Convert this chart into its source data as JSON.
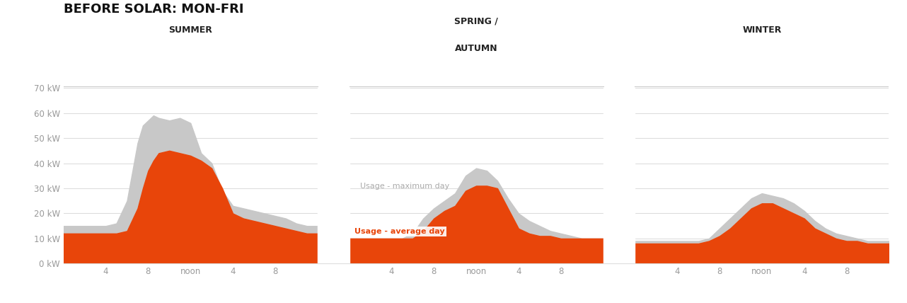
{
  "title": "BEFORE SOLAR: MON-FRI",
  "title_fontsize": 13,
  "background_color": "#ffffff",
  "avg_color": "#E8450A",
  "max_color": "#c8c8c8",
  "grid_color": "#dddddd",
  "avg_label": "Usage - average day",
  "max_label": "Usage - maximum day",
  "ylim": [
    0,
    70
  ],
  "yticks": [
    0,
    10,
    20,
    30,
    40,
    50,
    60,
    70
  ],
  "ytick_labels": [
    "0 kW",
    "10 kW",
    "20 kW",
    "30 kW",
    "40 kW",
    "50 kW",
    "60 kW",
    "70 kW"
  ],
  "summer_x": [
    0,
    1,
    2,
    3,
    4,
    5,
    6,
    7,
    7.5,
    8,
    8.5,
    9,
    10,
    11,
    12,
    13,
    14,
    15,
    16,
    17,
    18,
    19,
    20,
    21,
    22,
    23,
    24
  ],
  "summer_avg": [
    12,
    12,
    12,
    12,
    12,
    12,
    13,
    22,
    30,
    37,
    41,
    44,
    45,
    44,
    43,
    41,
    38,
    30,
    20,
    18,
    17,
    16,
    15,
    14,
    13,
    12,
    12
  ],
  "summer_max": [
    15,
    15,
    15,
    15,
    15,
    16,
    25,
    48,
    55,
    57,
    59,
    58,
    57,
    58,
    56,
    44,
    40,
    29,
    23,
    22,
    21,
    20,
    19,
    18,
    16,
    15,
    15
  ],
  "spring_x": [
    0,
    1,
    2,
    3,
    4,
    5,
    6,
    7,
    8,
    9,
    10,
    11,
    12,
    13,
    14,
    15,
    16,
    17,
    18,
    19,
    20,
    21,
    22,
    23,
    24
  ],
  "spring_avg": [
    10,
    10,
    10,
    10,
    10,
    10,
    10,
    13,
    18,
    21,
    23,
    29,
    31,
    31,
    30,
    22,
    14,
    12,
    11,
    11,
    10,
    10,
    10,
    10,
    10
  ],
  "spring_max": [
    10,
    10,
    10,
    10,
    10,
    10,
    12,
    18,
    22,
    25,
    28,
    35,
    38,
    37,
    33,
    26,
    20,
    17,
    15,
    13,
    12,
    11,
    10,
    10,
    10
  ],
  "winter_x": [
    0,
    1,
    2,
    3,
    4,
    5,
    6,
    7,
    8,
    9,
    10,
    11,
    12,
    13,
    14,
    15,
    16,
    17,
    18,
    19,
    20,
    21,
    22,
    23,
    24
  ],
  "winter_avg": [
    8,
    8,
    8,
    8,
    8,
    8,
    8,
    9,
    11,
    14,
    18,
    22,
    24,
    24,
    22,
    20,
    18,
    14,
    12,
    10,
    9,
    9,
    8,
    8,
    8
  ],
  "winter_max": [
    9,
    9,
    9,
    9,
    9,
    9,
    9,
    10,
    14,
    18,
    22,
    26,
    28,
    27,
    26,
    24,
    21,
    17,
    14,
    12,
    11,
    10,
    9,
    9,
    9
  ]
}
